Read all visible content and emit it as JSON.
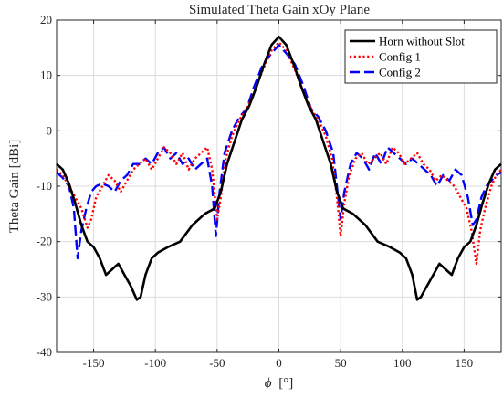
{
  "chart_data": {
    "type": "line",
    "title": "Simulated Theta Gain xOy Plane",
    "xlabel_symbol": "ϕ",
    "xlabel_unit": "[°]",
    "ylabel": "Theta Gain [dBi]",
    "xlim": [
      -180,
      180
    ],
    "ylim": [
      -40,
      20
    ],
    "xticks": [
      -150,
      -100,
      -50,
      0,
      50,
      100,
      150
    ],
    "yticks": [
      -40,
      -30,
      -20,
      -10,
      0,
      10,
      20
    ],
    "grid": true,
    "legend_position": "top-right",
    "series": [
      {
        "name": "Horn without Slot",
        "color": "#000000",
        "dash": "solid",
        "points": [
          [
            -180,
            -6
          ],
          [
            -175,
            -7
          ],
          [
            -170,
            -9.5
          ],
          [
            -165,
            -13
          ],
          [
            -160,
            -17
          ],
          [
            -155,
            -20
          ],
          [
            -150,
            -21
          ],
          [
            -145,
            -23
          ],
          [
            -140,
            -26
          ],
          [
            -135,
            -25
          ],
          [
            -130,
            -24
          ],
          [
            -125,
            -26
          ],
          [
            -120,
            -28
          ],
          [
            -115,
            -30.5
          ],
          [
            -112,
            -30
          ],
          [
            -108,
            -26
          ],
          [
            -103,
            -23
          ],
          [
            -98,
            -22
          ],
          [
            -90,
            -21
          ],
          [
            -80,
            -20
          ],
          [
            -70,
            -17
          ],
          [
            -60,
            -15
          ],
          [
            -52,
            -14
          ],
          [
            -47,
            -11
          ],
          [
            -42,
            -6
          ],
          [
            -36,
            -2
          ],
          [
            -30,
            2
          ],
          [
            -24,
            4.5
          ],
          [
            -18,
            8
          ],
          [
            -12,
            12
          ],
          [
            -6,
            15.5
          ],
          [
            0,
            17
          ],
          [
            6,
            15.5
          ],
          [
            12,
            12
          ],
          [
            18,
            8
          ],
          [
            24,
            4.5
          ],
          [
            30,
            2
          ],
          [
            36,
            -2
          ],
          [
            42,
            -6
          ],
          [
            47,
            -11
          ],
          [
            52,
            -14
          ],
          [
            60,
            -15
          ],
          [
            70,
            -17
          ],
          [
            80,
            -20
          ],
          [
            90,
            -21
          ],
          [
            98,
            -22
          ],
          [
            103,
            -23
          ],
          [
            108,
            -26
          ],
          [
            112,
            -30.5
          ],
          [
            115,
            -30
          ],
          [
            120,
            -28
          ],
          [
            125,
            -26
          ],
          [
            130,
            -24
          ],
          [
            135,
            -25
          ],
          [
            140,
            -26
          ],
          [
            145,
            -23
          ],
          [
            150,
            -21
          ],
          [
            155,
            -20
          ],
          [
            160,
            -17
          ],
          [
            165,
            -13
          ],
          [
            170,
            -9.5
          ],
          [
            175,
            -7
          ],
          [
            180,
            -6
          ]
        ]
      },
      {
        "name": "Config 1",
        "color": "#ff0000",
        "dash": "dotted",
        "points": [
          [
            -180,
            -7
          ],
          [
            -175,
            -8
          ],
          [
            -170,
            -10
          ],
          [
            -165,
            -12
          ],
          [
            -160,
            -14
          ],
          [
            -155,
            -17.5
          ],
          [
            -152,
            -16
          ],
          [
            -148,
            -12
          ],
          [
            -143,
            -10
          ],
          [
            -138,
            -8
          ],
          [
            -133,
            -9
          ],
          [
            -128,
            -11
          ],
          [
            -123,
            -9
          ],
          [
            -118,
            -7
          ],
          [
            -113,
            -6
          ],
          [
            -108,
            -5
          ],
          [
            -103,
            -7
          ],
          [
            -98,
            -5
          ],
          [
            -93,
            -3
          ],
          [
            -88,
            -4
          ],
          [
            -83,
            -6
          ],
          [
            -78,
            -4
          ],
          [
            -73,
            -7
          ],
          [
            -68,
            -5
          ],
          [
            -63,
            -4
          ],
          [
            -58,
            -3
          ],
          [
            -54,
            -7
          ],
          [
            -50,
            -16
          ],
          [
            -47,
            -12
          ],
          [
            -43,
            -5
          ],
          [
            -38,
            -1
          ],
          [
            -32,
            2
          ],
          [
            -26,
            4
          ],
          [
            -20,
            7
          ],
          [
            -13,
            11
          ],
          [
            -6,
            14.5
          ],
          [
            0,
            16
          ],
          [
            6,
            14.5
          ],
          [
            13,
            11
          ],
          [
            20,
            7
          ],
          [
            26,
            4
          ],
          [
            32,
            2
          ],
          [
            38,
            -1
          ],
          [
            43,
            -5
          ],
          [
            47,
            -12
          ],
          [
            50,
            -19
          ],
          [
            53,
            -13
          ],
          [
            57,
            -8
          ],
          [
            62,
            -5
          ],
          [
            67,
            -4
          ],
          [
            72,
            -6
          ],
          [
            77,
            -5
          ],
          [
            82,
            -4
          ],
          [
            87,
            -6
          ],
          [
            92,
            -3
          ],
          [
            97,
            -4
          ],
          [
            102,
            -6
          ],
          [
            107,
            -5
          ],
          [
            112,
            -4
          ],
          [
            117,
            -6
          ],
          [
            122,
            -7
          ],
          [
            127,
            -9
          ],
          [
            132,
            -8
          ],
          [
            137,
            -9
          ],
          [
            142,
            -10
          ],
          [
            147,
            -12
          ],
          [
            152,
            -14
          ],
          [
            156,
            -18
          ],
          [
            160,
            -24
          ],
          [
            163,
            -18
          ],
          [
            167,
            -14
          ],
          [
            172,
            -10
          ],
          [
            176,
            -8
          ],
          [
            180,
            -7
          ]
        ]
      },
      {
        "name": "Config 2",
        "color": "#0000ff",
        "dash": "dashed",
        "points": [
          [
            -180,
            -7.5
          ],
          [
            -175,
            -8.5
          ],
          [
            -170,
            -10
          ],
          [
            -166,
            -14
          ],
          [
            -163,
            -23
          ],
          [
            -160,
            -18
          ],
          [
            -156,
            -14
          ],
          [
            -152,
            -11
          ],
          [
            -148,
            -10
          ],
          [
            -143,
            -9.5
          ],
          [
            -138,
            -10
          ],
          [
            -133,
            -11
          ],
          [
            -128,
            -9
          ],
          [
            -123,
            -8
          ],
          [
            -118,
            -6
          ],
          [
            -113,
            -6
          ],
          [
            -108,
            -5
          ],
          [
            -103,
            -6
          ],
          [
            -98,
            -4
          ],
          [
            -93,
            -3
          ],
          [
            -88,
            -5
          ],
          [
            -83,
            -4
          ],
          [
            -78,
            -6
          ],
          [
            -73,
            -5
          ],
          [
            -68,
            -7
          ],
          [
            -63,
            -6
          ],
          [
            -58,
            -5
          ],
          [
            -54,
            -10
          ],
          [
            -51,
            -19
          ],
          [
            -48,
            -11
          ],
          [
            -44,
            -4
          ],
          [
            -38,
            0
          ],
          [
            -32,
            2.5
          ],
          [
            -26,
            4
          ],
          [
            -20,
            8
          ],
          [
            -13,
            12
          ],
          [
            -6,
            14
          ],
          [
            0,
            15.5
          ],
          [
            6,
            14
          ],
          [
            13,
            12
          ],
          [
            20,
            8
          ],
          [
            26,
            4
          ],
          [
            32,
            2.5
          ],
          [
            38,
            0
          ],
          [
            44,
            -4
          ],
          [
            48,
            -12
          ],
          [
            50,
            -16
          ],
          [
            53,
            -11
          ],
          [
            58,
            -6
          ],
          [
            63,
            -4
          ],
          [
            68,
            -5
          ],
          [
            73,
            -7
          ],
          [
            78,
            -4
          ],
          [
            83,
            -6
          ],
          [
            88,
            -3
          ],
          [
            93,
            -4
          ],
          [
            98,
            -5
          ],
          [
            103,
            -6
          ],
          [
            108,
            -5
          ],
          [
            113,
            -6
          ],
          [
            118,
            -7
          ],
          [
            123,
            -8
          ],
          [
            128,
            -10
          ],
          [
            133,
            -8
          ],
          [
            138,
            -9
          ],
          [
            143,
            -7
          ],
          [
            148,
            -8
          ],
          [
            153,
            -12
          ],
          [
            157,
            -17
          ],
          [
            160,
            -16
          ],
          [
            164,
            -12
          ],
          [
            168,
            -10
          ],
          [
            172,
            -9
          ],
          [
            176,
            -8
          ],
          [
            180,
            -7.5
          ]
        ]
      }
    ]
  }
}
